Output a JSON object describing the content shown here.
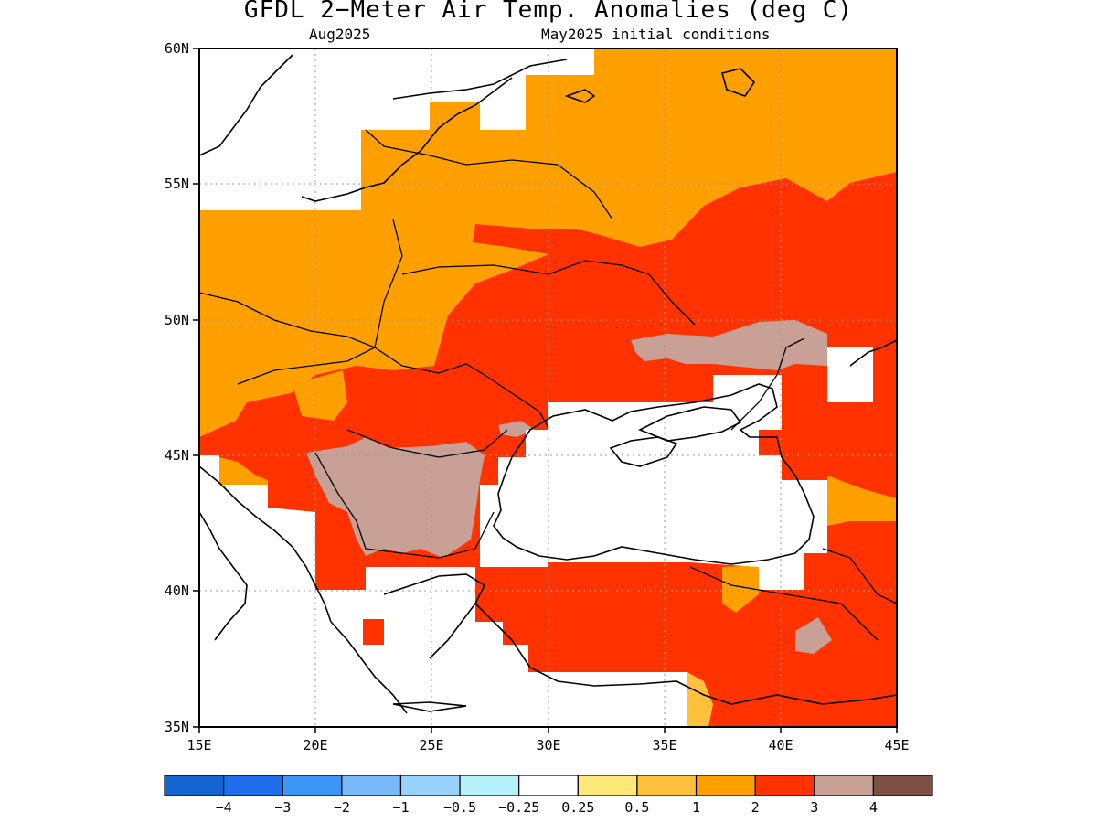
{
  "title": "GFDL 2−Meter Air Temp. Anomalies (deg C)",
  "subtitle_left": "Aug2025",
  "subtitle_right": "May2025 initial conditions",
  "axes": {
    "lon_ticks": [
      "15E",
      "20E",
      "25E",
      "30E",
      "35E",
      "40E",
      "45E"
    ],
    "lat_ticks": [
      "60N",
      "55N",
      "50N",
      "45N",
      "40N",
      "35N"
    ]
  },
  "colorbar": {
    "labels": [
      "−4",
      "−3",
      "−2",
      "−1",
      "−0.5",
      "−0.25",
      "0.25",
      "0.5",
      "1",
      "2",
      "3",
      "4"
    ],
    "colors": [
      "#1464d2",
      "#1e6eeb",
      "#3c96f5",
      "#78b9fa",
      "#96d2fa",
      "#b4f0fa",
      "#ffffff",
      "#ffe878",
      "#ffc03c",
      "#ffa000",
      "#ff3200",
      "#c8a096",
      "#7d5046"
    ]
  },
  "anomaly_colors": {
    "warm_1_2": "#ffa000",
    "warm_2_3": "#ff3200",
    "warm_3_4": "#c8a096",
    "warm_0_5_1": "#ffc03c",
    "neutral": "#ffffff"
  }
}
